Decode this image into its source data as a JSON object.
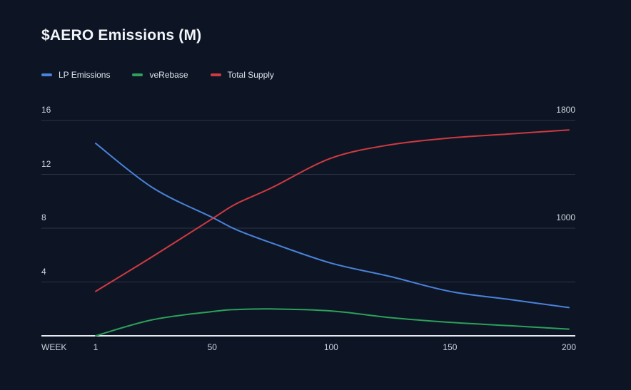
{
  "page": {
    "background": "#0D1525"
  },
  "header": {
    "title": "$AERO Emissions (M)"
  },
  "legend": {
    "items": [
      {
        "label": "LP Emissions",
        "color": "#4A82D9"
      },
      {
        "label": "veRebase",
        "color": "#2DA05A"
      },
      {
        "label": "Total Supply",
        "color": "#CF3A40"
      }
    ]
  },
  "axes": {
    "x": {
      "label": "WEEK",
      "ticks": [
        1,
        50,
        100,
        150,
        200
      ]
    },
    "y_left": {
      "ticks": [
        16,
        12,
        8,
        4
      ]
    },
    "y_right": {
      "ticks": [
        1800,
        1000
      ]
    }
  },
  "colors": {
    "background": "#0D1525",
    "gridline": "#2B3345",
    "axis_line": "#E7EAEE",
    "tick_text": "#CBD3DD",
    "title_text": "#F2F5F9"
  },
  "chart_data": {
    "type": "line",
    "title": "$AERO Emissions (M)",
    "xlabel": "WEEK",
    "x": [
      1,
      25,
      50,
      60,
      75,
      100,
      125,
      150,
      175,
      200
    ],
    "x_range": [
      1,
      200
    ],
    "y_left_range": [
      0,
      16
    ],
    "y_left_gridlines": [
      4,
      8,
      12,
      16
    ],
    "y_right_label_values": [
      1000,
      1800
    ],
    "grid": "horizontal-only",
    "legend_position": "top-left",
    "series": [
      {
        "name": "LP Emissions",
        "axis": "left",
        "color": "#4A82D9",
        "values": [
          14.3,
          11.0,
          8.8,
          7.9,
          6.9,
          5.4,
          4.4,
          3.3,
          2.7,
          2.1
        ]
      },
      {
        "name": "veRebase",
        "axis": "left",
        "color": "#2DA05A",
        "values": [
          0,
          1.2,
          1.8,
          1.95,
          2.0,
          1.85,
          1.35,
          1.0,
          0.75,
          0.5
        ]
      },
      {
        "name": "Total Supply",
        "axis": "right",
        "color": "#CF3A40",
        "values": [
          530,
          790,
          1070,
          1180,
          1300,
          1520,
          1620,
          1670,
          1700,
          1730
        ]
      }
    ]
  }
}
